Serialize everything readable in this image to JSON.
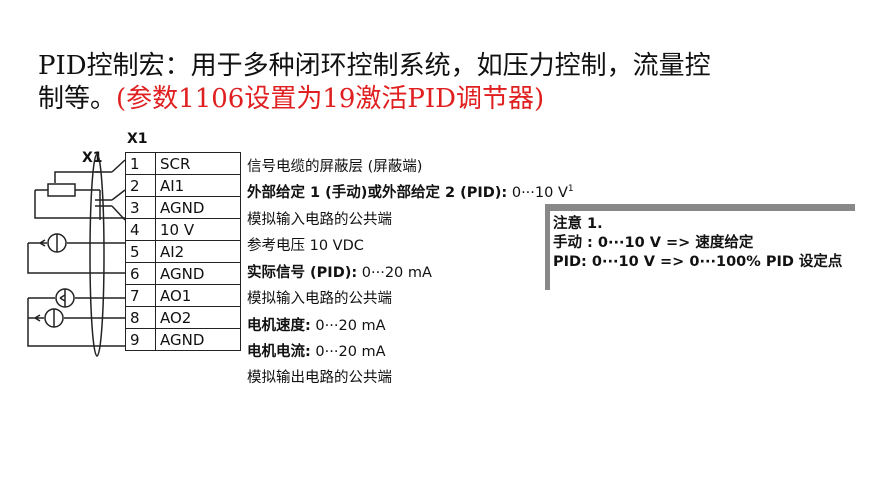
{
  "title": {
    "line1": "PID控制宏：用于多种闭环控制系统，如压力控制，流量控",
    "line2_black": "制等。",
    "line2_red": "(参数1106设置为19激活PID调节器)"
  },
  "diagram": {
    "label_left": "X1",
    "label_top": "X1",
    "rows": [
      {
        "num": "1",
        "sig": "SCR",
        "bold": "",
        "text": "信号电缆的屏蔽层 (屏蔽端)",
        "sup": ""
      },
      {
        "num": "2",
        "sig": "AI1",
        "bold": "外部给定 1 (手动)或外部给定 2 (PID):",
        "text": " 0···10 V",
        "sup": "1"
      },
      {
        "num": "3",
        "sig": "AGND",
        "bold": "",
        "text": "模拟输入电路的公共端",
        "sup": ""
      },
      {
        "num": "4",
        "sig": "10 V",
        "bold": "",
        "text": "参考电压 10 VDC",
        "sup": ""
      },
      {
        "num": "5",
        "sig": "AI2",
        "bold": "实际信号 (PID):",
        "text": " 0···20 mA",
        "sup": ""
      },
      {
        "num": "6",
        "sig": "AGND",
        "bold": "",
        "text": "模拟输入电路的公共端",
        "sup": ""
      },
      {
        "num": "7",
        "sig": "AO1",
        "bold": "电机速度:",
        "text": " 0···20 mA",
        "sup": ""
      },
      {
        "num": "8",
        "sig": "AO2",
        "bold": "电机电流:",
        "text": " 0···20 mA",
        "sup": ""
      },
      {
        "num": "9",
        "sig": "AGND",
        "bold": "",
        "text": "模拟输出电路的公共端",
        "sup": ""
      }
    ]
  },
  "note": {
    "heading": "注意 1.",
    "line1": "手动 : 0···10 V => 速度给定",
    "line2": "PID: 0···10 V => 0···100% PID 设定点"
  },
  "colors": {
    "accent_red": "#e02020",
    "note_border": "#888888"
  }
}
